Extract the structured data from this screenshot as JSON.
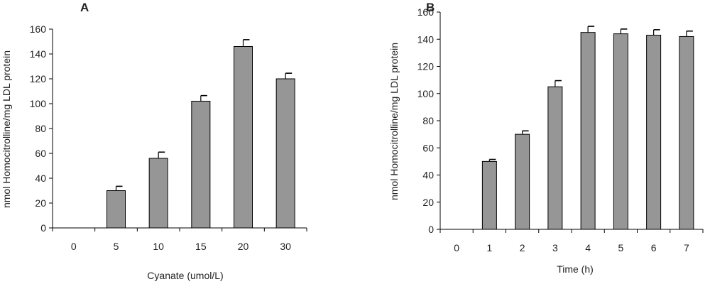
{
  "colors": {
    "bar_fill": "#969696",
    "bar_stroke": "#000000",
    "axis": "#000000",
    "text": "#222222"
  },
  "chart_data": [
    {
      "type": "bar",
      "panel_label": "A",
      "categories": [
        "0",
        "5",
        "10",
        "15",
        "20",
        "30"
      ],
      "values": [
        0,
        30,
        56,
        102,
        146,
        120
      ],
      "error": [
        0,
        3.5,
        5,
        4.5,
        5.5,
        4.5
      ],
      "xlabel": "Cyanate (umol/L)",
      "ylabel": "nmol Homocitrolline/mg LDL protein",
      "ylim": [
        0,
        160
      ],
      "yticks": [
        0,
        20,
        40,
        60,
        80,
        100,
        120,
        140,
        160
      ],
      "grid": false,
      "legend": "none"
    },
    {
      "type": "bar",
      "panel_label": "B",
      "categories": [
        "0",
        "1",
        "2",
        "3",
        "4",
        "5",
        "6",
        "7"
      ],
      "values": [
        0,
        50,
        70,
        105,
        145,
        144,
        143,
        142
      ],
      "error": [
        0,
        1.5,
        2.5,
        4.5,
        4.5,
        3.5,
        4,
        4
      ],
      "xlabel": "Time (h)",
      "ylabel": "nmol Homocitrolline/mg LDL protein",
      "ylim": [
        0,
        160
      ],
      "yticks": [
        0,
        20,
        40,
        60,
        80,
        100,
        120,
        140,
        160
      ],
      "grid": false,
      "legend": "none"
    }
  ]
}
